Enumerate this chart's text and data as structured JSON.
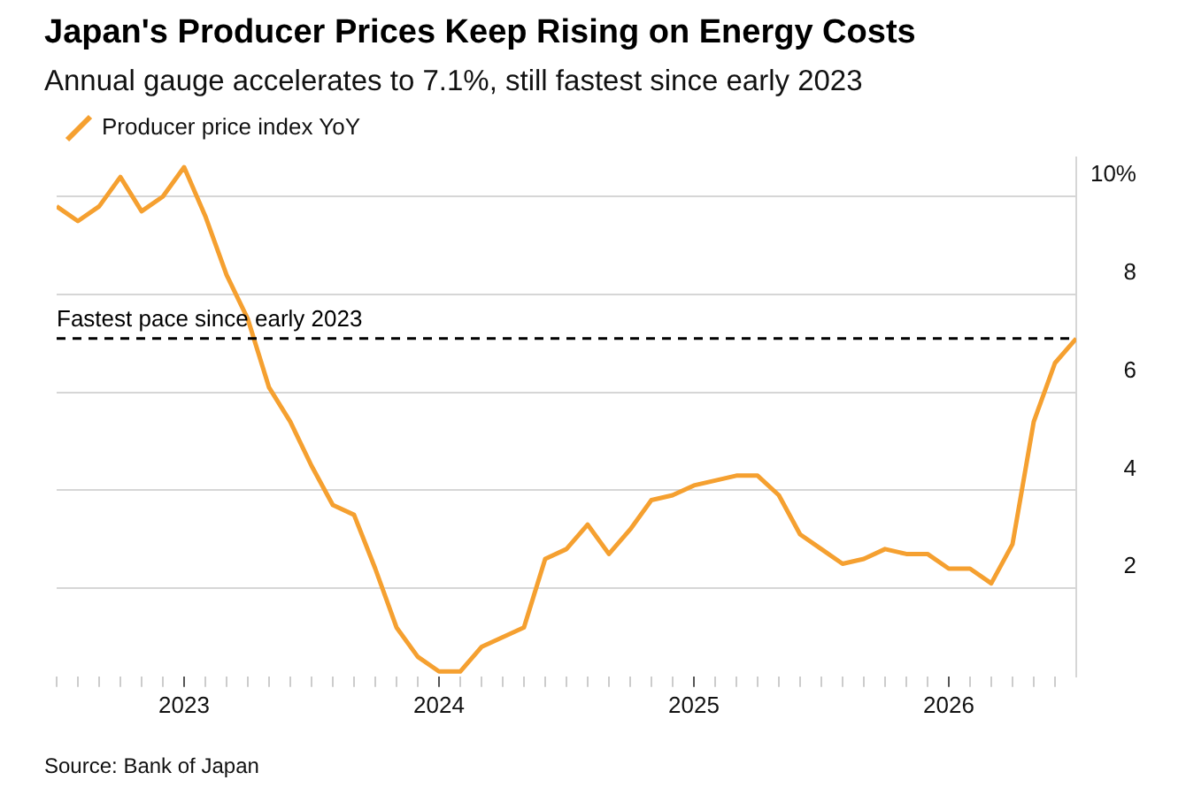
{
  "chart_data": {
    "type": "line",
    "title": "Japan's Producer Prices Keep Rising on Energy Costs",
    "subtitle": "Annual gauge accelerates to 7.1%, still fastest since early 2023",
    "x": [
      "2022-07",
      "2022-08",
      "2022-09",
      "2022-10",
      "2022-11",
      "2022-12",
      "2023-01",
      "2023-02",
      "2023-03",
      "2023-04",
      "2023-05",
      "2023-06",
      "2023-07",
      "2023-08",
      "2023-09",
      "2023-10",
      "2023-11",
      "2023-12",
      "2024-01",
      "2024-02",
      "2024-03",
      "2024-04",
      "2024-05",
      "2024-06",
      "2024-07",
      "2024-08",
      "2024-09",
      "2024-10",
      "2024-11",
      "2024-12",
      "2025-01",
      "2025-02",
      "2025-03",
      "2025-04",
      "2025-05",
      "2025-06",
      "2025-07",
      "2025-08",
      "2025-09",
      "2025-10",
      "2025-11",
      "2025-12",
      "2026-01",
      "2026-02",
      "2026-03",
      "2026-04",
      "2026-05",
      "2026-06",
      "2026-07"
    ],
    "series": [
      {
        "name": "Producer price index YoY",
        "color": "#f5a030",
        "values": [
          9.8,
          9.5,
          9.8,
          10.4,
          9.7,
          10.0,
          10.6,
          9.6,
          8.4,
          7.5,
          6.1,
          5.4,
          4.5,
          3.7,
          3.5,
          2.4,
          1.2,
          0.6,
          0.3,
          0.3,
          0.8,
          1.0,
          1.2,
          2.6,
          2.8,
          3.3,
          2.7,
          3.2,
          3.8,
          3.9,
          4.1,
          4.2,
          4.3,
          4.3,
          3.9,
          3.1,
          2.8,
          2.5,
          2.6,
          2.8,
          2.7,
          2.7,
          2.4,
          2.4,
          2.1,
          2.9,
          5.4,
          6.6,
          7.1
        ]
      }
    ],
    "xlim": [
      "2022-07",
      "2026-07"
    ],
    "xticks": [
      {
        "value": "2022-07",
        "label": null
      },
      {
        "value": "2022-08",
        "label": null
      },
      {
        "value": "2022-09",
        "label": null
      },
      {
        "value": "2022-10",
        "label": null
      },
      {
        "value": "2022-11",
        "label": null
      },
      {
        "value": "2022-12",
        "label": null
      },
      {
        "value": "2023-01",
        "label": "2023"
      },
      {
        "value": "2023-02",
        "label": null
      },
      {
        "value": "2023-03",
        "label": null
      },
      {
        "value": "2023-04",
        "label": null
      },
      {
        "value": "2023-05",
        "label": null
      },
      {
        "value": "2023-06",
        "label": null
      },
      {
        "value": "2023-07",
        "label": null
      },
      {
        "value": "2023-08",
        "label": null
      },
      {
        "value": "2023-09",
        "label": null
      },
      {
        "value": "2023-10",
        "label": null
      },
      {
        "value": "2023-11",
        "label": null
      },
      {
        "value": "2023-12",
        "label": null
      },
      {
        "value": "2024-01",
        "label": "2024"
      },
      {
        "value": "2024-02",
        "label": null
      },
      {
        "value": "2024-03",
        "label": null
      },
      {
        "value": "2024-04",
        "label": null
      },
      {
        "value": "2024-05",
        "label": null
      },
      {
        "value": "2024-06",
        "label": null
      },
      {
        "value": "2024-07",
        "label": null
      },
      {
        "value": "2024-08",
        "label": null
      },
      {
        "value": "2024-09",
        "label": null
      },
      {
        "value": "2024-10",
        "label": null
      },
      {
        "value": "2024-11",
        "label": null
      },
      {
        "value": "2024-12",
        "label": null
      },
      {
        "value": "2025-01",
        "label": "2025"
      },
      {
        "value": "2025-02",
        "label": null
      },
      {
        "value": "2025-03",
        "label": null
      },
      {
        "value": "2025-04",
        "label": null
      },
      {
        "value": "2025-05",
        "label": null
      },
      {
        "value": "2025-06",
        "label": null
      },
      {
        "value": "2025-07",
        "label": null
      },
      {
        "value": "2025-08",
        "label": null
      },
      {
        "value": "2025-09",
        "label": null
      },
      {
        "value": "2025-10",
        "label": null
      },
      {
        "value": "2025-11",
        "label": null
      },
      {
        "value": "2025-12",
        "label": null
      },
      {
        "value": "2026-01",
        "label": "2026"
      },
      {
        "value": "2026-02",
        "label": null
      },
      {
        "value": "2026-03",
        "label": null
      },
      {
        "value": "2026-04",
        "label": null
      },
      {
        "value": "2026-05",
        "label": null
      },
      {
        "value": "2026-06",
        "label": null
      }
    ],
    "ylim": [
      0.2,
      10.8
    ],
    "yticks": [
      2,
      4,
      6,
      8,
      {
        "value": 10,
        "label": "10%"
      }
    ],
    "grid": "y",
    "legend": "top left",
    "marker": "none",
    "line_style": "solid",
    "ref_lines": [
      {
        "axis": "y",
        "value": 7.1,
        "label": "Fastest pace since early 2023",
        "color": "#000000",
        "line_style": "dashed"
      }
    ],
    "annotations": [
      "Source: Bank of Japan"
    ]
  }
}
